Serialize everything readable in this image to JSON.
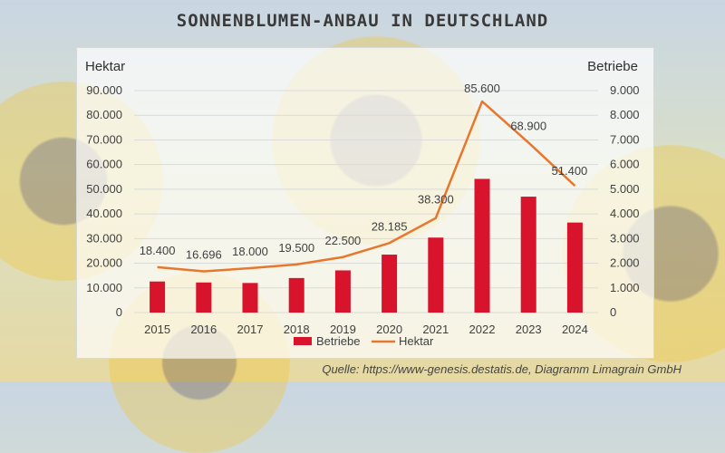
{
  "title": "SONNENBLUMEN-ANBAU IN DEUTSCHLAND",
  "source": "Quelle: https://www-genesis.destatis.de, Diagramm Limagrain GmbH",
  "colors": {
    "bars": "#d7142c",
    "line": "#e8772e",
    "text": "#404040",
    "grid": "#dadada"
  },
  "chart_data": {
    "type": "bar",
    "categories": [
      "2015",
      "2016",
      "2017",
      "2018",
      "2019",
      "2020",
      "2021",
      "2022",
      "2023",
      "2024"
    ],
    "series": [
      {
        "name": "Betriebe",
        "type": "bar",
        "axis": "right",
        "values": [
          1260,
          1220,
          1200,
          1400,
          1710,
          2350,
          3040,
          5420,
          4700,
          3650
        ]
      },
      {
        "name": "Hektar",
        "type": "line",
        "axis": "left",
        "values": [
          18400,
          16696,
          18000,
          19500,
          22500,
          28185,
          38300,
          85600,
          68900,
          51400
        ],
        "labels": [
          "18.400",
          "16.696",
          "18.000",
          "19.500",
          "22.500",
          "28.185",
          "38.300",
          "85.600",
          "68.900",
          "51.400"
        ]
      }
    ],
    "ylabel_left": "Hektar",
    "ylabel_right": "Betriebe",
    "ylim_left": [
      0,
      90000
    ],
    "ylim_right": [
      0,
      9000
    ],
    "yticks_left": [
      "0",
      "10.000",
      "20.000",
      "30.000",
      "40.000",
      "50.000",
      "60.000",
      "70.000",
      "80.000",
      "90.000"
    ],
    "yticks_right": [
      "0",
      "1.000",
      "2.000",
      "3.000",
      "4.000",
      "5.000",
      "6.000",
      "7.000",
      "8.000",
      "9.000"
    ],
    "grid": true,
    "legend": "bottom-center"
  }
}
